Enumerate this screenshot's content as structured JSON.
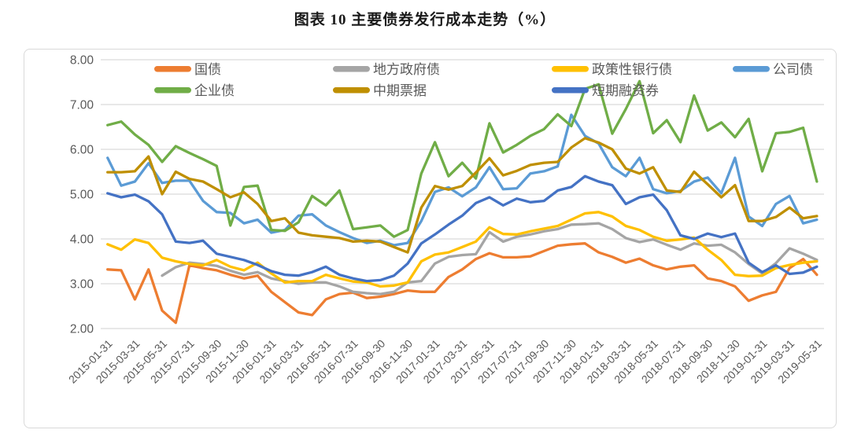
{
  "title": "图表 10 主要债券发行成本走势（%）",
  "chart_data": {
    "type": "line",
    "title": "图表 10 主要债券发行成本走势（%）",
    "xlabel": "",
    "ylabel": "",
    "ylim": [
      2.0,
      8.0
    ],
    "yticks": [
      8.0,
      7.0,
      6.0,
      5.0,
      4.0,
      3.0,
      2.0
    ],
    "ytick_labels": [
      "8.00",
      "7.00",
      "6.00",
      "5.00",
      "4.00",
      "3.00",
      "2.00"
    ],
    "grid": true,
    "legend_position": "top-inside",
    "axis_text_color": "#595959",
    "grid_color": "#d9d9d9",
    "x_unit": "month (monthly points, every 2nd month labeled)",
    "n_points": 53,
    "x_tick_every": 2,
    "x_tick_labels": [
      "2015-01-31",
      "2015-03-31",
      "2015-05-31",
      "2015-07-31",
      "2015-09-30",
      "2015-11-30",
      "2016-01-31",
      "2016-03-31",
      "2016-05-31",
      "2016-07-31",
      "2016-09-30",
      "2016-11-30",
      "2017-01-31",
      "2017-03-31",
      "2017-05-31",
      "2017-07-31",
      "2017-09-30",
      "2017-11-30",
      "2018-01-31",
      "2018-03-31",
      "2018-05-31",
      "2018-07-31",
      "2018-09-30",
      "2018-11-30",
      "2019-01-31",
      "2019-03-31",
      "2019-05-31"
    ],
    "legend_rows": [
      [
        "国债",
        "地方政府债",
        "政策性银行债",
        "公司债"
      ],
      [
        "企业债",
        "中期票据",
        "短期融资券"
      ]
    ],
    "series": [
      {
        "name": "国债",
        "color": "#ED7D31",
        "values": [
          3.32,
          3.3,
          2.65,
          3.32,
          2.4,
          2.13,
          3.41,
          3.35,
          3.3,
          3.2,
          3.12,
          3.18,
          2.82,
          2.59,
          2.36,
          2.3,
          2.65,
          2.77,
          2.8,
          2.68,
          2.71,
          2.77,
          2.85,
          2.82,
          2.82,
          3.15,
          3.32,
          3.55,
          3.68,
          3.59,
          3.59,
          3.61,
          3.73,
          3.85,
          3.88,
          3.9,
          3.7,
          3.6,
          3.47,
          3.56,
          3.41,
          3.32,
          3.38,
          3.41,
          3.12,
          3.06,
          2.94,
          2.62,
          2.74,
          2.82,
          3.35,
          3.55,
          3.2
        ]
      },
      {
        "name": "地方政府债",
        "color": "#A5A5A5",
        "values": [
          null,
          null,
          null,
          null,
          3.18,
          3.37,
          3.47,
          3.44,
          3.4,
          3.29,
          3.2,
          3.26,
          3.12,
          3.06,
          3.0,
          3.03,
          3.03,
          2.94,
          2.82,
          2.79,
          2.77,
          2.82,
          3.03,
          3.06,
          3.45,
          3.6,
          3.64,
          3.66,
          4.15,
          3.94,
          4.05,
          4.1,
          4.17,
          4.22,
          4.32,
          4.33,
          4.35,
          4.22,
          4.02,
          3.93,
          3.99,
          3.87,
          3.76,
          3.9,
          3.85,
          3.87,
          3.7,
          3.44,
          3.23,
          3.46,
          3.79,
          3.67,
          3.53
        ]
      },
      {
        "name": "政策性银行债",
        "color": "#FFC000",
        "values": [
          3.88,
          3.76,
          3.99,
          3.91,
          3.58,
          3.5,
          3.44,
          3.41,
          3.53,
          3.38,
          3.3,
          3.47,
          3.23,
          3.03,
          3.06,
          3.06,
          3.2,
          3.12,
          3.05,
          3.03,
          2.94,
          2.96,
          3.03,
          3.5,
          3.65,
          3.7,
          3.82,
          3.94,
          4.26,
          4.11,
          4.1,
          4.17,
          4.23,
          4.29,
          4.43,
          4.57,
          4.6,
          4.5,
          4.29,
          4.2,
          4.05,
          3.96,
          3.99,
          4.03,
          3.76,
          3.53,
          3.2,
          3.17,
          3.18,
          3.35,
          3.42,
          3.47,
          3.5
        ]
      },
      {
        "name": "公司债",
        "color": "#5B9BD5",
        "values": [
          5.81,
          5.19,
          5.28,
          5.69,
          5.25,
          5.3,
          5.3,
          4.85,
          4.6,
          4.58,
          4.35,
          4.43,
          4.14,
          4.2,
          4.52,
          4.55,
          4.3,
          4.15,
          4.02,
          3.91,
          3.96,
          3.86,
          3.91,
          4.4,
          5.05,
          5.15,
          4.95,
          5.15,
          5.6,
          5.11,
          5.13,
          5.46,
          5.51,
          5.62,
          6.77,
          6.3,
          6.13,
          5.6,
          5.4,
          5.81,
          5.11,
          5.02,
          5.07,
          5.28,
          5.37,
          5.02,
          5.81,
          4.5,
          4.29,
          4.78,
          4.96,
          4.35,
          4.43
        ]
      },
      {
        "name": "企业债",
        "color": "#70AD47",
        "values": [
          6.54,
          6.62,
          6.33,
          6.1,
          5.72,
          6.07,
          5.92,
          5.78,
          5.63,
          4.3,
          5.16,
          5.19,
          4.2,
          4.18,
          4.37,
          4.96,
          4.75,
          5.08,
          4.22,
          4.26,
          4.3,
          4.05,
          4.2,
          5.46,
          6.16,
          5.4,
          5.7,
          5.35,
          6.58,
          5.93,
          6.1,
          6.3,
          6.45,
          6.78,
          6.52,
          7.35,
          7.45,
          6.35,
          6.9,
          7.52,
          6.36,
          6.65,
          6.16,
          7.2,
          6.42,
          6.6,
          6.27,
          6.68,
          5.51,
          6.36,
          6.39,
          6.48,
          5.28
        ]
      },
      {
        "name": "中期票据",
        "color": "#BF8F00",
        "values": [
          5.49,
          5.49,
          5.51,
          5.84,
          5.0,
          5.5,
          5.34,
          5.28,
          5.11,
          4.93,
          5.04,
          4.78,
          4.4,
          4.46,
          4.14,
          4.08,
          4.05,
          4.02,
          3.94,
          3.96,
          3.94,
          3.82,
          3.7,
          4.7,
          5.18,
          5.1,
          5.18,
          5.48,
          5.8,
          5.42,
          5.52,
          5.65,
          5.7,
          5.72,
          6.04,
          6.25,
          6.15,
          6.0,
          5.57,
          5.46,
          5.6,
          5.08,
          5.05,
          5.5,
          5.22,
          4.93,
          5.2,
          4.4,
          4.4,
          4.49,
          4.7,
          4.46,
          4.51
        ]
      },
      {
        "name": "短期融资券",
        "color": "#4472C4",
        "values": [
          5.02,
          4.93,
          4.99,
          4.84,
          4.55,
          3.94,
          3.91,
          3.96,
          3.67,
          3.6,
          3.53,
          3.42,
          3.28,
          3.2,
          3.18,
          3.26,
          3.38,
          3.2,
          3.12,
          3.06,
          3.08,
          3.18,
          3.45,
          3.9,
          4.1,
          4.32,
          4.52,
          4.8,
          4.93,
          4.75,
          4.9,
          4.82,
          4.85,
          5.08,
          5.16,
          5.4,
          5.28,
          5.2,
          4.78,
          4.93,
          4.99,
          4.64,
          4.08,
          4.0,
          4.12,
          4.04,
          4.12,
          3.47,
          3.26,
          3.41,
          3.22,
          3.25,
          3.38
        ]
      }
    ]
  }
}
